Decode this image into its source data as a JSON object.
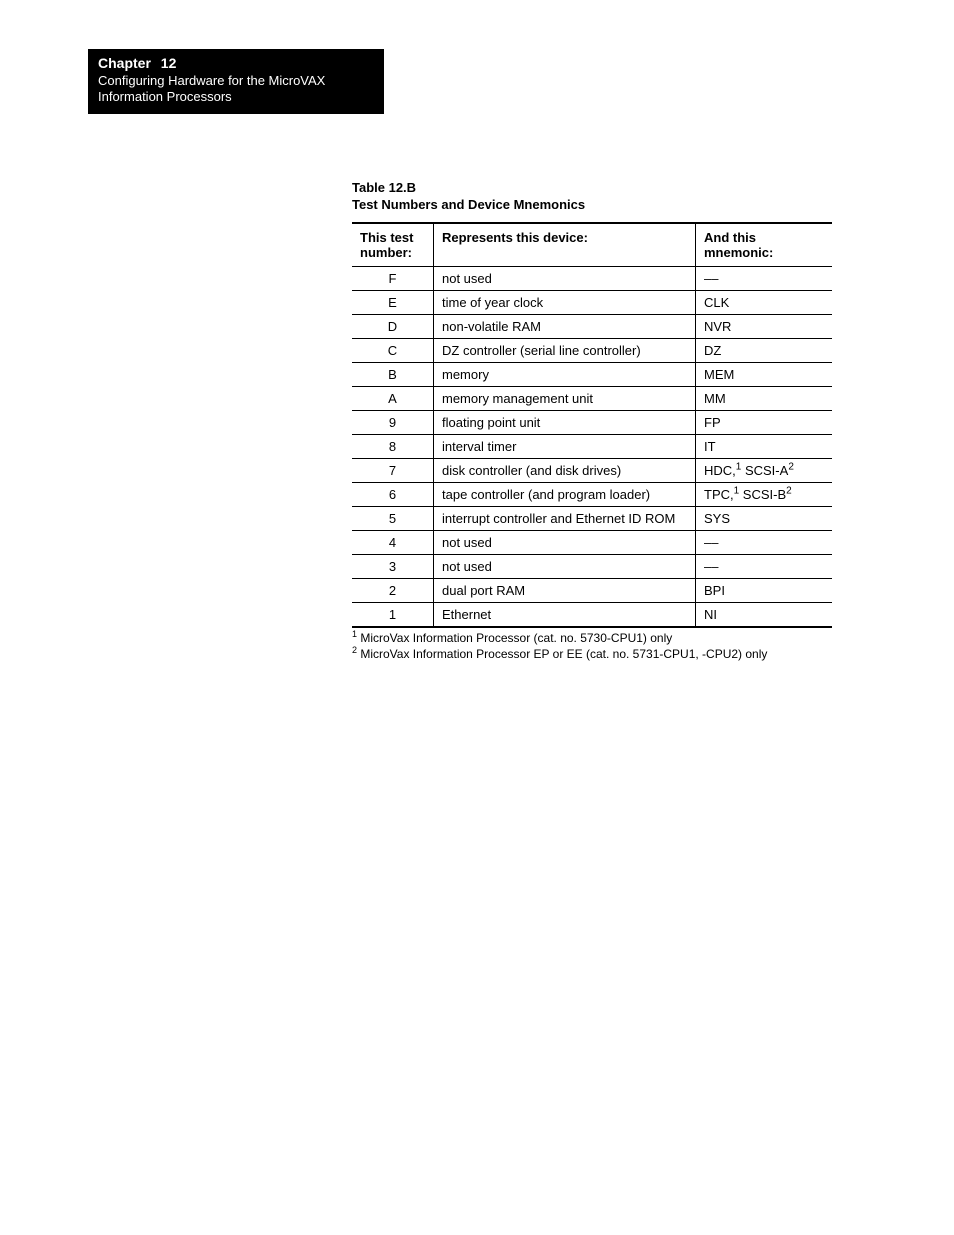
{
  "header": {
    "chapter_label": "Chapter",
    "chapter_number": "12",
    "line1": "Configuring Hardware for the MicroVAX",
    "line2": "Information Processors"
  },
  "table": {
    "label": "Table 12.B",
    "title": "Test Numbers and Device Mnemonics",
    "columns": {
      "test": "This test number:",
      "represents": "Represents this device:",
      "mnemonic": "And this mnemonic:"
    },
    "rows": [
      {
        "test": "F",
        "rep": "not used",
        "mne": "––"
      },
      {
        "test": "E",
        "rep": "time of year clock",
        "mne": "CLK"
      },
      {
        "test": "D",
        "rep": "non-volatile RAM",
        "mne": "NVR"
      },
      {
        "test": "C",
        "rep": "DZ controller (serial line controller)",
        "mne": "DZ"
      },
      {
        "test": "B",
        "rep": "memory",
        "mne": "MEM"
      },
      {
        "test": "A",
        "rep": "memory management unit",
        "mne": "MM"
      },
      {
        "test": "9",
        "rep": "floating point unit",
        "mne": "FP"
      },
      {
        "test": "8",
        "rep": "interval timer",
        "mne": "IT"
      },
      {
        "test": "7",
        "rep": "disk controller (and disk drives)",
        "mne_html": "HDC,<sup>1</sup> SCSI-A<sup>2</sup>"
      },
      {
        "test": "6",
        "rep": "tape controller (and program loader)",
        "mne_html": "TPC,<sup>1</sup> SCSI-B<sup>2</sup>"
      },
      {
        "test": "5",
        "rep": "interrupt controller and Ethernet ID ROM",
        "mne": "SYS"
      },
      {
        "test": "4",
        "rep": "not used",
        "mne": "––"
      },
      {
        "test": "3",
        "rep": "not used",
        "mne": "––"
      },
      {
        "test": "2",
        "rep": "dual port RAM",
        "mne": "BPI"
      },
      {
        "test": "1",
        "rep": "Ethernet",
        "mne": "NI"
      }
    ],
    "footnotes": [
      {
        "num": "1",
        "text": "MicroVax Information Processor (cat. no. 5730-CPU1) only"
      },
      {
        "num": "2",
        "text": "MicroVax Information Processor EP or EE (cat. no. 5731-CPU1, -CPU2) only"
      }
    ]
  }
}
